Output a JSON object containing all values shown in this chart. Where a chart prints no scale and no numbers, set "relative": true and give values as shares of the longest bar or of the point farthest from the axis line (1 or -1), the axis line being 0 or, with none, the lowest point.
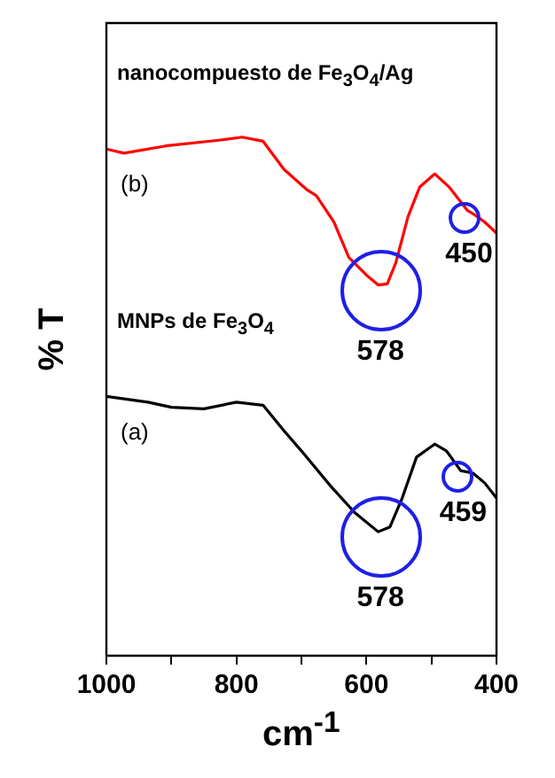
{
  "chart_data": {
    "type": "line",
    "relative": true,
    "xlabel": "cm$^{-1}$",
    "ylabel": "% T",
    "xlim": [
      1000,
      400
    ],
    "xticks": [
      1000,
      {
        "value": 900,
        "label": null
      },
      800,
      {
        "value": 700,
        "label": null
      },
      600,
      {
        "value": 500,
        "label": null
      },
      400
    ],
    "grid": false,
    "legend": false,
    "marker": "none",
    "line_style": "solid",
    "series": [
      {
        "name": "nanocompuesto de Fe$_{3}$O$_{4}$/Ag",
        "color": "#ff0000",
        "x": [
          1000,
          973,
          909,
          827,
          791,
          759,
          727,
          691,
          677,
          650,
          627,
          600,
          582,
          568,
          555,
          536,
          518,
          495,
          473,
          445,
          432,
          418,
          400
        ],
        "values": [
          0.977,
          0.969,
          0.983,
          0.994,
          1,
          0.992,
          0.938,
          0.898,
          0.887,
          0.836,
          0.768,
          0.734,
          0.715,
          0.717,
          0.757,
          0.847,
          0.904,
          0.929,
          0.904,
          0.859,
          0.849,
          0.836,
          0.815
        ]
      },
      {
        "name": "MNPs de Fe$_{3}$O$_{4}$",
        "color": "#000000",
        "x": [
          1000,
          936,
          900,
          850,
          800,
          759,
          727,
          700,
          655,
          618,
          582,
          564,
          545,
          523,
          495,
          477,
          455,
          436,
          418,
          400
        ],
        "values": [
          0.5,
          0.489,
          0.479,
          0.476,
          0.489,
          0.483,
          0.434,
          0.395,
          0.327,
          0.276,
          0.239,
          0.248,
          0.304,
          0.383,
          0.408,
          0.395,
          0.357,
          0.352,
          0.333,
          0.304
        ]
      }
    ],
    "annotations": [
      "(b)",
      {
        "text": "578",
        "x": 578,
        "y": 0.715
      },
      {
        "text": "450",
        "x": 450,
        "y": 0.855
      },
      "(a)",
      {
        "text": "578",
        "x": 578,
        "y": 0.239
      },
      {
        "text": "459",
        "x": 459,
        "y": 0.357
      }
    ]
  }
}
